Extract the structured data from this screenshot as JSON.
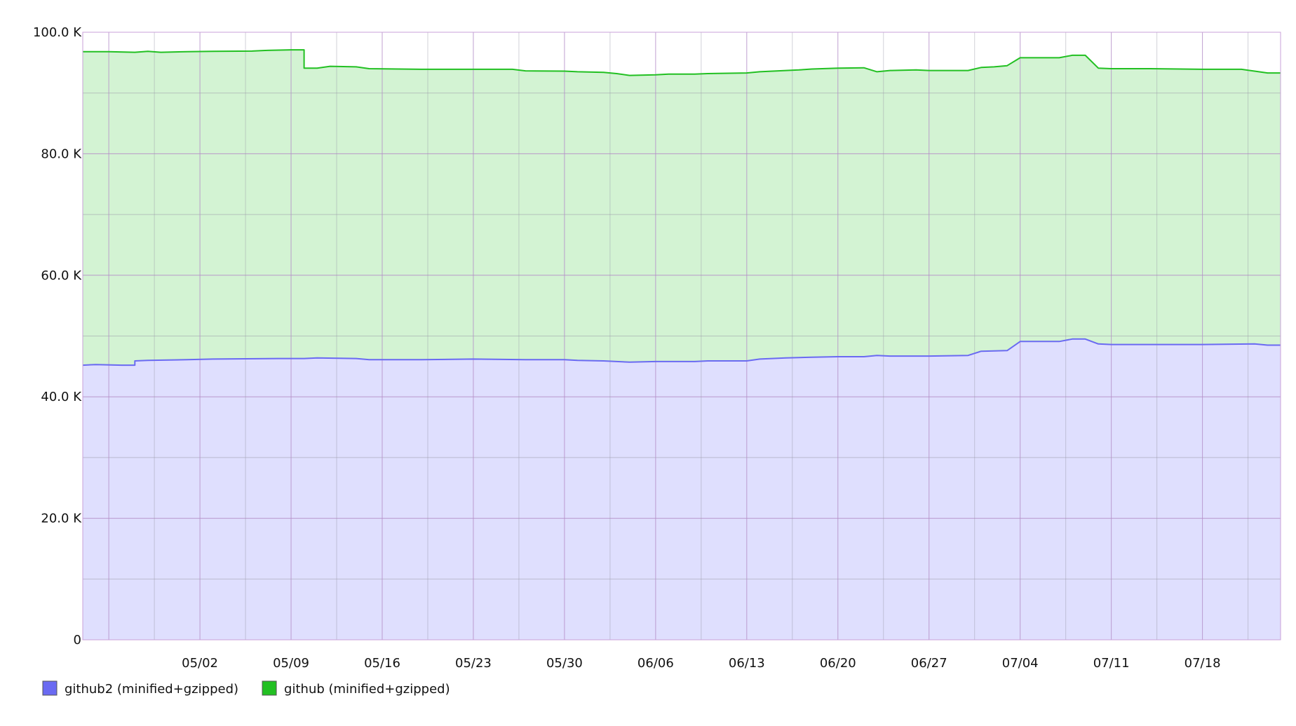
{
  "chart_data": {
    "type": "area",
    "stacked": false,
    "title": "",
    "xlabel": "",
    "ylabel": "",
    "ylim": [
      0,
      100000
    ],
    "grid": true,
    "legend_position": "bottom-left",
    "date_range": [
      "2024-04-23",
      "2024-07-24"
    ],
    "x_ticks": [
      "05/02",
      "05/09",
      "05/16",
      "05/23",
      "05/30",
      "06/06",
      "06/13",
      "06/20",
      "06/27",
      "07/04",
      "07/11",
      "07/18"
    ],
    "y_ticks": [
      {
        "value": 0,
        "label": "0"
      },
      {
        "value": 20000,
        "label": "20.0 K"
      },
      {
        "value": 40000,
        "label": "40.0 K"
      },
      {
        "value": 60000,
        "label": "60.0 K"
      },
      {
        "value": 80000,
        "label": "80.0 K"
      },
      {
        "value": 100000,
        "label": "100.0 K"
      }
    ],
    "series": [
      {
        "name": "github (minified+gzipped)",
        "color": "#22c022",
        "fill": "#d3f3d3",
        "points": [
          [
            "04/23",
            96800
          ],
          [
            "04/25",
            96800
          ],
          [
            "04/27",
            96700
          ],
          [
            "04/28",
            96850
          ],
          [
            "04/29",
            96700
          ],
          [
            "05/01",
            96800
          ],
          [
            "05/03",
            96850
          ],
          [
            "05/06",
            96900
          ],
          [
            "05/07",
            97000
          ],
          [
            "05/09",
            97100
          ],
          [
            "05/10",
            97100
          ],
          [
            "05/10",
            94100
          ],
          [
            "05/11",
            94100
          ],
          [
            "05/12",
            94400
          ],
          [
            "05/14",
            94300
          ],
          [
            "05/15",
            94000
          ],
          [
            "05/19",
            93900
          ],
          [
            "05/23",
            93900
          ],
          [
            "05/26",
            93900
          ],
          [
            "05/27",
            93650
          ],
          [
            "05/30",
            93600
          ],
          [
            "05/31",
            93500
          ],
          [
            "06/02",
            93400
          ],
          [
            "06/03",
            93200
          ],
          [
            "06/04",
            92900
          ],
          [
            "06/06",
            93000
          ],
          [
            "06/07",
            93100
          ],
          [
            "06/09",
            93100
          ],
          [
            "06/10",
            93200
          ],
          [
            "06/13",
            93300
          ],
          [
            "06/14",
            93500
          ],
          [
            "06/16",
            93700
          ],
          [
            "06/17",
            93800
          ],
          [
            "06/18",
            93950
          ],
          [
            "06/20",
            94100
          ],
          [
            "06/22",
            94150
          ],
          [
            "06/23",
            93500
          ],
          [
            "06/24",
            93700
          ],
          [
            "06/26",
            93800
          ],
          [
            "06/27",
            93700
          ],
          [
            "06/30",
            93700
          ],
          [
            "07/01",
            94200
          ],
          [
            "07/02",
            94300
          ],
          [
            "07/03",
            94500
          ],
          [
            "07/04",
            95800
          ],
          [
            "07/07",
            95800
          ],
          [
            "07/08",
            96200
          ],
          [
            "07/09",
            96200
          ],
          [
            "07/10",
            94100
          ],
          [
            "07/11",
            94000
          ],
          [
            "07/14",
            94000
          ],
          [
            "07/18",
            93900
          ],
          [
            "07/21",
            93900
          ],
          [
            "07/22",
            93600
          ],
          [
            "07/23",
            93300
          ],
          [
            "07/24",
            93300
          ]
        ]
      },
      {
        "name": "github2 (minified+gzipped)",
        "color": "#6a6af2",
        "fill": "#dfdffe",
        "points": [
          [
            "04/23",
            45200
          ],
          [
            "04/24",
            45300
          ],
          [
            "04/26",
            45200
          ],
          [
            "04/27",
            45200
          ],
          [
            "04/27",
            45900
          ],
          [
            "04/28",
            46000
          ],
          [
            "05/01",
            46100
          ],
          [
            "05/03",
            46200
          ],
          [
            "05/08",
            46300
          ],
          [
            "05/10",
            46300
          ],
          [
            "05/11",
            46400
          ],
          [
            "05/14",
            46300
          ],
          [
            "05/15",
            46100
          ],
          [
            "05/19",
            46100
          ],
          [
            "05/23",
            46200
          ],
          [
            "05/27",
            46100
          ],
          [
            "05/30",
            46100
          ],
          [
            "05/31",
            46000
          ],
          [
            "06/02",
            45900
          ],
          [
            "06/03",
            45800
          ],
          [
            "06/04",
            45700
          ],
          [
            "06/06",
            45800
          ],
          [
            "06/09",
            45800
          ],
          [
            "06/10",
            45900
          ],
          [
            "06/13",
            45900
          ],
          [
            "06/14",
            46200
          ],
          [
            "06/16",
            46400
          ],
          [
            "06/18",
            46500
          ],
          [
            "06/20",
            46600
          ],
          [
            "06/22",
            46600
          ],
          [
            "06/23",
            46800
          ],
          [
            "06/24",
            46700
          ],
          [
            "06/27",
            46700
          ],
          [
            "06/30",
            46800
          ],
          [
            "07/01",
            47500
          ],
          [
            "07/03",
            47600
          ],
          [
            "07/04",
            49100
          ],
          [
            "07/07",
            49100
          ],
          [
            "07/08",
            49500
          ],
          [
            "07/09",
            49500
          ],
          [
            "07/10",
            48700
          ],
          [
            "07/11",
            48600
          ],
          [
            "07/18",
            48600
          ],
          [
            "07/22",
            48700
          ],
          [
            "07/23",
            48500
          ],
          [
            "07/24",
            48500
          ]
        ]
      }
    ],
    "legend": [
      {
        "label": "github2 (minified+gzipped)",
        "color": "#6a6af2"
      },
      {
        "label": "github (minified+gzipped)",
        "color": "#22c022"
      }
    ]
  }
}
